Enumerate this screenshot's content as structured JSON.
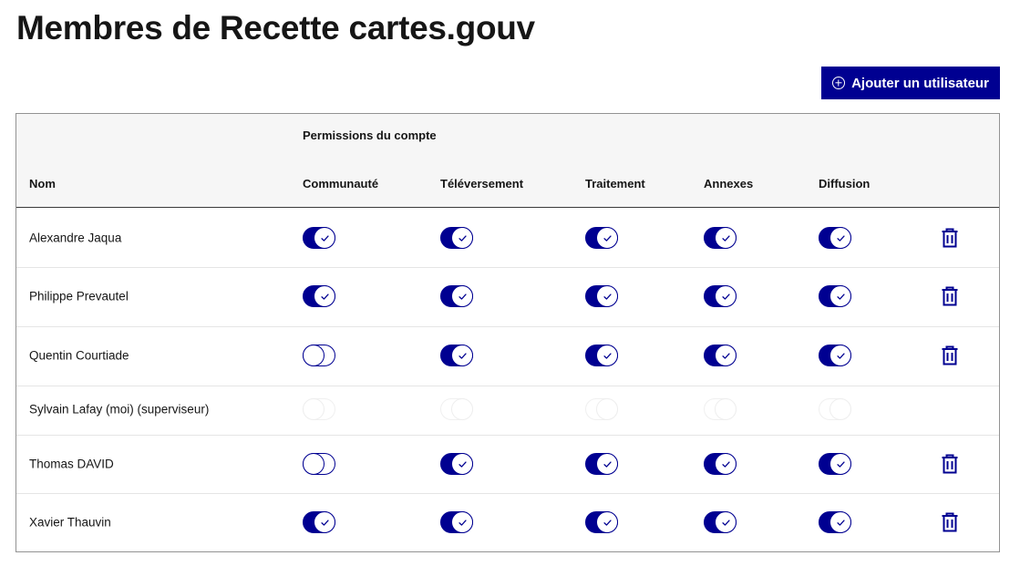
{
  "page": {
    "title": "Membres de Recette cartes.gouv",
    "add_button_label": "Ajouter un utilisateur",
    "add_button_icon": "add-circle-icon"
  },
  "colors": {
    "primary": "#000091",
    "header_bg": "#f6f6f6",
    "text": "#161616"
  },
  "table": {
    "group_header": "Permissions du compte",
    "columns": {
      "name": "Nom",
      "communaute": "Communauté",
      "televersement": "Téléversement",
      "traitement": "Traitement",
      "annexes": "Annexes",
      "diffusion": "Diffusion"
    },
    "rows": [
      {
        "name": "Alexandre Jaqua",
        "perms": [
          "on",
          "on",
          "on",
          "on",
          "on"
        ],
        "deletable": true
      },
      {
        "name": "Philippe Prevautel",
        "perms": [
          "on",
          "on",
          "on",
          "on",
          "on"
        ],
        "deletable": true
      },
      {
        "name": "Quentin Courtiade",
        "perms": [
          "off",
          "on",
          "on",
          "on",
          "on"
        ],
        "deletable": true
      },
      {
        "name": "Sylvain Lafay (moi) (superviseur)",
        "perms": [
          "disabled-left",
          "disabled-right",
          "disabled-right",
          "disabled-right",
          "disabled-right"
        ],
        "deletable": false
      },
      {
        "name": "Thomas DAVID",
        "perms": [
          "off",
          "on",
          "on",
          "on",
          "on"
        ],
        "deletable": true
      },
      {
        "name": "Xavier Thauvin",
        "perms": [
          "on",
          "on",
          "on",
          "on",
          "on"
        ],
        "deletable": true
      }
    ],
    "delete_icon": "trash-icon",
    "toggle_checked_icon": "check-icon"
  }
}
